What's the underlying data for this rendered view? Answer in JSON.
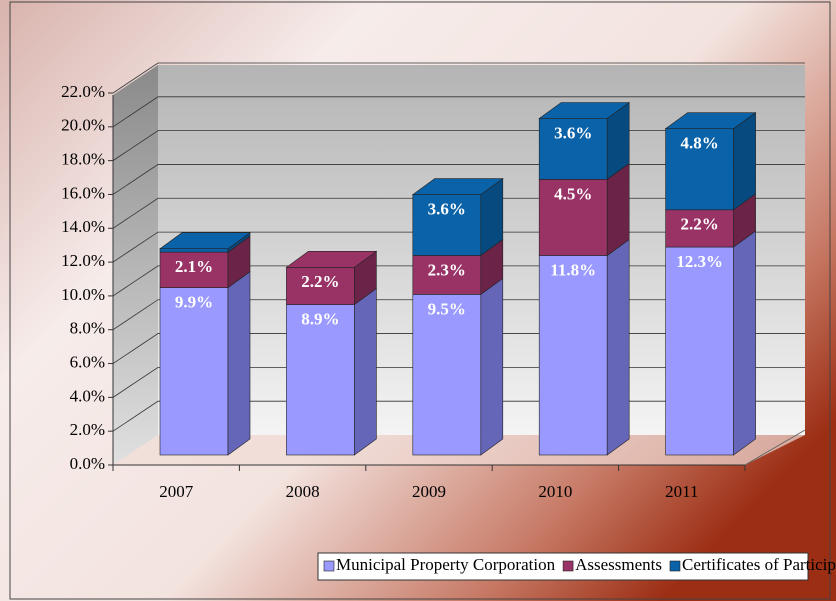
{
  "chart_data": {
    "type": "bar",
    "stacked": true,
    "categories": [
      "2007",
      "2008",
      "2009",
      "2010",
      "2011"
    ],
    "series": [
      {
        "name": "Municipal Property Corporation",
        "color": "#9999ff",
        "side": "#6666b8",
        "values": [
          9.9,
          8.9,
          9.5,
          11.8,
          12.3
        ],
        "value_labels": [
          "9.9%",
          "8.9%",
          "9.5%",
          "11.8%",
          "12.3%"
        ]
      },
      {
        "name": "Assessments",
        "color": "#993366",
        "side": "#6b2447",
        "values": [
          2.1,
          2.2,
          2.3,
          4.5,
          2.2
        ],
        "value_labels": [
          "2.1%",
          "2.2%",
          "2.3%",
          "4.5%",
          "2.2%"
        ]
      },
      {
        "name": "Certificates of Participation",
        "color": "#0a62a8",
        "side": "#064a80",
        "values": [
          0.2,
          0,
          3.6,
          3.6,
          4.8
        ],
        "value_labels": [
          null,
          null,
          "3.6%",
          "3.6%",
          "4.8%"
        ]
      }
    ],
    "ylim": [
      0,
      22
    ],
    "yticks": [
      {
        "value": 0,
        "label": "0.0%"
      },
      {
        "value": 2,
        "label": "2.0%"
      },
      {
        "value": 4,
        "label": "4.0%"
      },
      {
        "value": 6,
        "label": "6.0%"
      },
      {
        "value": 8,
        "label": "8.0%"
      },
      {
        "value": 10,
        "label": "10.0%"
      },
      {
        "value": 12,
        "label": "12.0%"
      },
      {
        "value": 14,
        "label": "14.0%"
      },
      {
        "value": 16,
        "label": "16.0%"
      },
      {
        "value": 18,
        "label": "18.0%"
      },
      {
        "value": 20,
        "label": "20.0%"
      },
      {
        "value": 22,
        "label": "22.0%"
      }
    ],
    "grid": true,
    "legend": "bottom"
  }
}
